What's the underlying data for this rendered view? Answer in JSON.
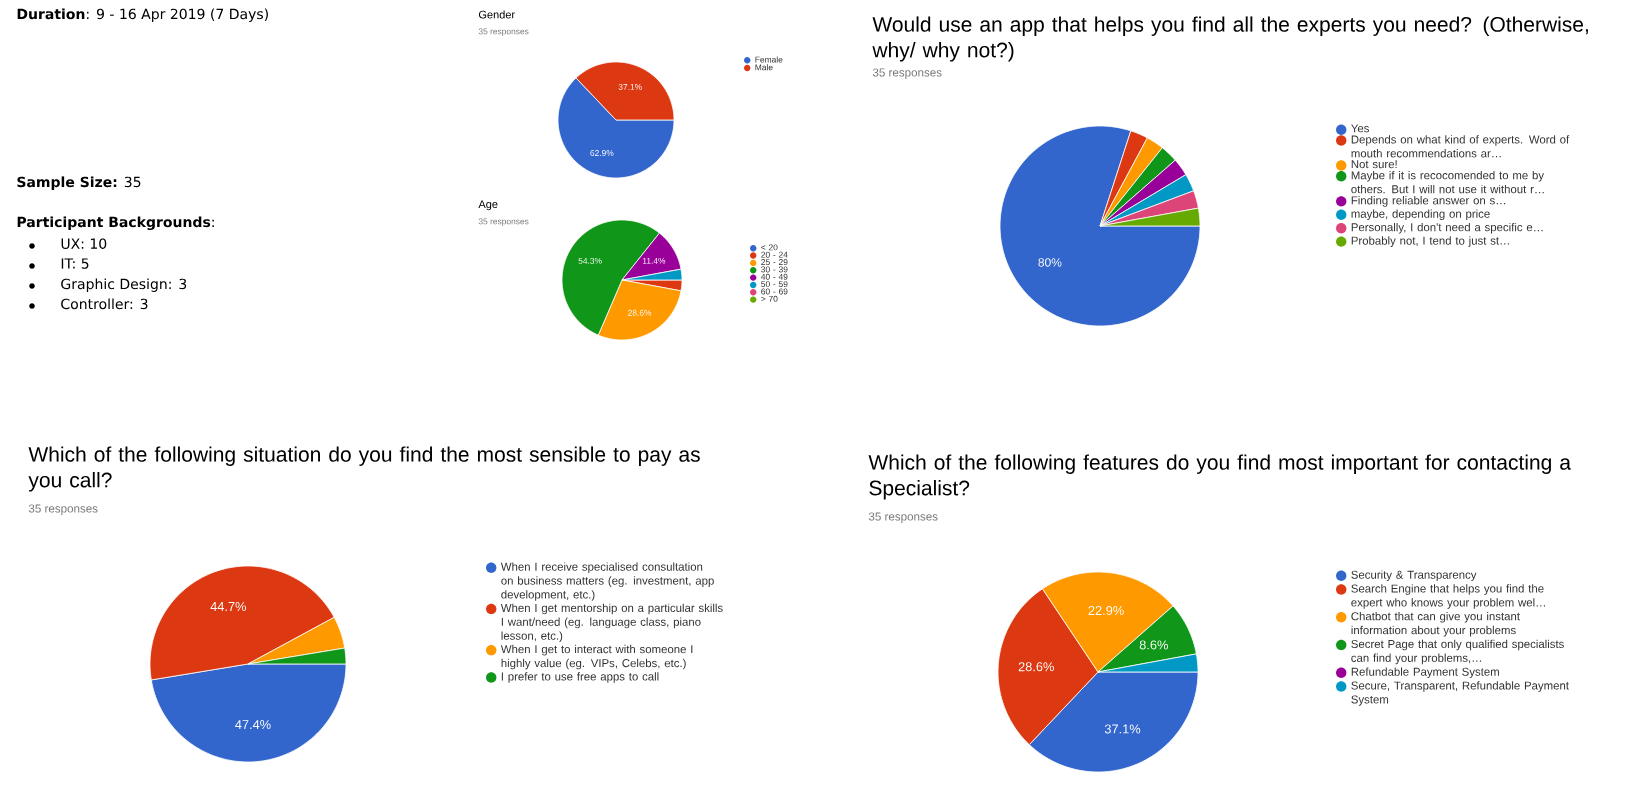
{
  "chart_data": [
    {
      "type": "other",
      "title": "**Duration**: 9 - 16 Apr 2019 (7 Days)",
      "subtitle": "**Sample Size:** 35",
      "legend_title": "**Participant Backgrounds**:",
      "categories": [
        "UX: 10",
        "IT: 5",
        "Graphic Design: 3",
        "Controller: 3"
      ]
    },
    {
      "type": "pie",
      "title": "Gender",
      "subtitle": "35 responses",
      "categories": [
        "Female",
        "Male"
      ],
      "values": [
        62.9,
        37.1
      ],
      "colors": [
        "#3366cc",
        "#dc3912"
      ],
      "value_labels": [
        "62.9%",
        "37.1%"
      ],
      "legend": "right"
    },
    {
      "type": "pie",
      "title": "Age",
      "subtitle": "35 responses",
      "categories": [
        "< 20",
        "20 - 24",
        "25 - 29",
        "30 - 39",
        "40 - 49",
        "50 - 59",
        "60 - 69",
        "> 70"
      ],
      "values": [
        0,
        2.9,
        28.6,
        54.3,
        11.4,
        2.9,
        0,
        0
      ],
      "colors": [
        "#3366cc",
        "#dc3912",
        "#ff9900",
        "#109618",
        "#990099",
        "#0099c6",
        "#dd4477",
        "#66aa00"
      ],
      "value_labels": [
        null,
        null,
        "28.6%",
        "54.3%",
        "11.4%",
        null,
        null,
        null
      ],
      "legend": "right"
    },
    {
      "type": "pie",
      "title": "Would use an app that helps you find all the experts you need? (Otherwise, why/ why not?)",
      "subtitle": "35 responses",
      "categories": [
        "Yes",
        "Depends on what kind of experts. Word of mouth recommendations ar…",
        "Not sure!",
        "Maybe if it is recocomended to me by others. But I will not use it without r…",
        "Finding reliable answer on s…",
        "maybe, depending on price",
        "Personally, I don't need a specific e…",
        "Probably not, I tend to just st…"
      ],
      "values": [
        80,
        2.86,
        2.86,
        2.86,
        2.86,
        2.86,
        2.86,
        2.86
      ],
      "colors": [
        "#3366cc",
        "#dc3912",
        "#ff9900",
        "#109618",
        "#990099",
        "#0099c6",
        "#dd4477",
        "#66aa00"
      ],
      "value_labels": [
        "80%",
        null,
        null,
        null,
        null,
        null,
        null,
        null
      ],
      "legend": "right"
    },
    {
      "type": "pie",
      "title": "Which of the following situation do you find the most sensible to pay as you call?",
      "subtitle": "35 responses",
      "categories": [
        "When I receive specialised consultation on business matters (eg. investment, app development, etc.)",
        "When I get mentorship on a particular skills I want/need (eg. language class, piano lesson, etc.)",
        "When I get to interact with someone I highly value (eg. VIPs, Celebs, etc.)",
        "I prefer to use free apps to call"
      ],
      "values": [
        47.4,
        44.7,
        5.3,
        2.6
      ],
      "colors": [
        "#3366cc",
        "#dc3912",
        "#ff9900",
        "#109618"
      ],
      "value_labels": [
        "47.4%",
        "44.7%",
        null,
        null
      ],
      "legend": "right"
    },
    {
      "type": "pie",
      "title": "Which of the following features do you find most important for contacting a Specialist?",
      "subtitle": "35 responses",
      "categories": [
        "Security & Transparency",
        "Search Engine that helps you find the expert who knows your problem wel…",
        "Chatbot that can give you instant information about your problems",
        "Secret Page that only qualified specialists can find your problems,…",
        "Refundable Payment System",
        "Secure, Transparent, Refundable Payment System"
      ],
      "values": [
        37.1,
        28.6,
        22.9,
        8.6,
        0,
        2.9
      ],
      "colors": [
        "#3366cc",
        "#dc3912",
        "#ff9900",
        "#109618",
        "#990099",
        "#0099c6"
      ],
      "value_labels": [
        "37.1%",
        "28.6%",
        "22.9%",
        "8.6%",
        null,
        null
      ],
      "legend": "right"
    }
  ]
}
